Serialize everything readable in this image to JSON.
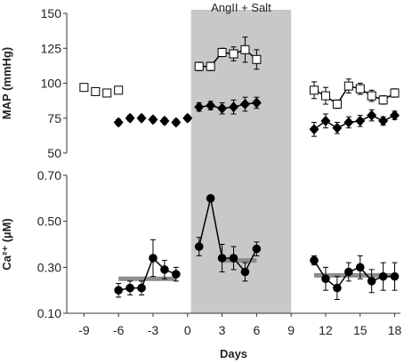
{
  "chart_data": [
    {
      "type": "scatter",
      "panel": "top",
      "ylabel": "MAP (mmHg)",
      "ylim": [
        50,
        150
      ],
      "yticks": [
        50,
        75,
        100,
        125,
        150
      ],
      "series": [
        {
          "marker": "open-square",
          "segments": [
            {
              "connected": false,
              "x": [
                -9,
                -8,
                -7,
                -6
              ],
              "y": [
                97,
                94,
                93,
                95
              ],
              "err": [
                1.5,
                1.5,
                1.5,
                1.5
              ]
            },
            {
              "connected": true,
              "x": [
                1,
                2,
                3,
                4,
                5,
                6
              ],
              "y": [
                112,
                112,
                122,
                121,
                124,
                117
              ],
              "err": [
                3,
                3,
                3,
                5,
                9,
                7
              ]
            },
            {
              "connected": true,
              "x": [
                11,
                12,
                13,
                14,
                15,
                16,
                17,
                18
              ],
              "y": [
                95,
                91,
                85,
                98,
                96,
                91,
                88,
                93
              ],
              "err": [
                6,
                6,
                3,
                5,
                4,
                4,
                3,
                3
              ]
            }
          ]
        },
        {
          "marker": "filled-diamond",
          "segments": [
            {
              "connected": false,
              "x": [
                -6,
                -5,
                -4,
                -3,
                -2,
                -1,
                0
              ],
              "y": [
                72,
                75,
                75,
                74,
                73,
                72,
                75
              ],
              "err": [
                2,
                2,
                2,
                2,
                2,
                2,
                2
              ]
            },
            {
              "connected": true,
              "x": [
                1,
                2,
                3,
                4,
                5,
                6
              ],
              "y": [
                83,
                84,
                82,
                83,
                85,
                86
              ],
              "err": [
                3,
                3,
                4,
                5,
                5,
                4
              ]
            },
            {
              "connected": true,
              "x": [
                11,
                12,
                13,
                14,
                15,
                16,
                17,
                18
              ],
              "y": [
                67,
                73,
                68,
                72,
                73,
                77,
                73,
                77
              ],
              "err": [
                5,
                5,
                4,
                4,
                4,
                4,
                3,
                3
              ]
            }
          ]
        }
      ]
    },
    {
      "type": "line",
      "panel": "bottom",
      "ylabel": "Ca²⁺ (µM)",
      "ylim": [
        0.1,
        0.7
      ],
      "yticks": [
        "0.10",
        "0.30",
        "0.50",
        "0.70"
      ],
      "xlabel": "Days",
      "xlim": [
        -10.5,
        18.5
      ],
      "xticks": [
        -9,
        -6,
        -3,
        0,
        3,
        6,
        9,
        12,
        15,
        18
      ],
      "shaded_region": {
        "x": [
          0.3,
          9.0
        ],
        "label": "AngII  + Salt"
      },
      "series": [
        {
          "marker": "filled-circle",
          "segments": [
            {
              "x": [
                -6,
                -5,
                -4,
                -3,
                -2,
                -1
              ],
              "y": [
                0.2,
                0.21,
                0.21,
                0.34,
                0.29,
                0.27
              ],
              "err": [
                0.03,
                0.03,
                0.03,
                0.08,
                0.04,
                0.03
              ]
            },
            {
              "x": [
                1,
                2,
                3,
                4,
                5,
                6
              ],
              "y": [
                0.39,
                0.6,
                0.34,
                0.34,
                0.28,
                0.38
              ],
              "err": [
                0.04,
                0.01,
                0.06,
                0.05,
                0.04,
                0.03
              ]
            },
            {
              "x": [
                11,
                12,
                13,
                14,
                15,
                16,
                17,
                18
              ],
              "y": [
                0.33,
                0.25,
                0.21,
                0.28,
                0.3,
                0.24,
                0.26,
                0.26
              ],
              "err": [
                0.02,
                0.05,
                0.05,
                0.04,
                0.05,
                0.05,
                0.06,
                0.06
              ]
            }
          ]
        },
        {
          "marker": "gray-mean-line",
          "segments": [
            {
              "x": [
                -6,
                -1
              ],
              "y": [
                0.25,
                0.25
              ]
            },
            {
              "x": [
                3,
                6
              ],
              "y": [
                0.33,
                0.33
              ]
            },
            {
              "x": [
                11,
                18
              ],
              "y": [
                0.265,
                0.265
              ]
            }
          ]
        }
      ]
    }
  ]
}
